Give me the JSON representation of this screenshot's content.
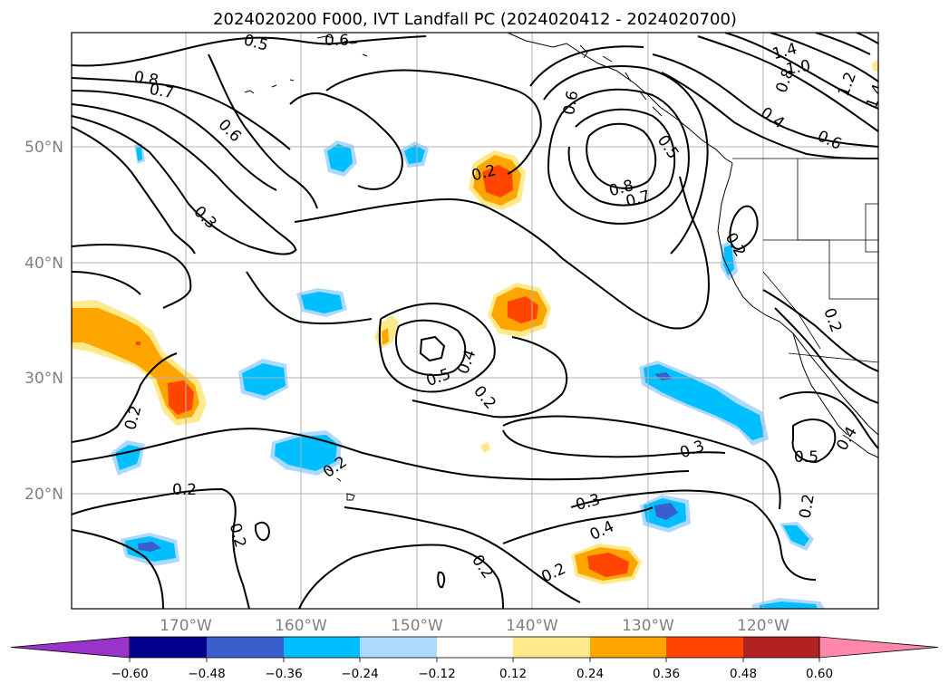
{
  "title": "2024020200 F000, IVT Landfall PC (2024020412 - 2024020700)",
  "lat_labels": [
    "50°N",
    "40°N",
    "30°N",
    "20°N"
  ],
  "lon_labels": [
    "170°W",
    "160°W",
    "150°W",
    "140°W",
    "130°W",
    "120°W"
  ],
  "colorbar": {
    "tick_labels": [
      "−0.60",
      "−0.48",
      "−0.36",
      "−0.24",
      "−0.12",
      "0.12",
      "0.24",
      "0.36",
      "0.48",
      "0.60"
    ],
    "colors": [
      "#9933cc",
      "#00008b",
      "#3a5fcd",
      "#00bfff",
      "#add8ff",
      "#ffffff",
      "#ffe98a",
      "#ffa500",
      "#ff4500",
      "#b22222",
      "#ff88aa"
    ]
  },
  "contour_labels": [
    {
      "text": "0.5",
      "name": "contour-label-0.5-a"
    },
    {
      "text": "0.6",
      "name": "contour-label-0.6-a"
    },
    {
      "text": "0.8",
      "name": "contour-label-0.8-a"
    },
    {
      "text": "0.7",
      "name": "contour-label-0.7-a"
    },
    {
      "text": "0.6",
      "name": "contour-label-0.6-b"
    },
    {
      "text": "0.3",
      "name": "contour-label-0.3-a"
    },
    {
      "text": "0.2",
      "name": "contour-label-0.2-a"
    },
    {
      "text": "0.6",
      "name": "contour-label-0.6-c"
    },
    {
      "text": "0.5",
      "name": "contour-label-0.5-b"
    },
    {
      "text": "0.8",
      "name": "contour-label-0.8-b"
    },
    {
      "text": "0.7",
      "name": "contour-label-0.7-b"
    },
    {
      "text": "1.4",
      "name": "contour-label-1.4-a"
    },
    {
      "text": "1.0",
      "name": "contour-label-1.0"
    },
    {
      "text": "0.8",
      "name": "contour-label-0.8-c"
    },
    {
      "text": "1.2",
      "name": "contour-label-1.2"
    },
    {
      "text": "1.4",
      "name": "contour-label-1.4-b"
    },
    {
      "text": "0.4",
      "name": "contour-label-0.4-a"
    },
    {
      "text": "0.6",
      "name": "contour-label-0.6-d"
    },
    {
      "text": "0.2",
      "name": "contour-label-0.2-b"
    },
    {
      "text": "0.5",
      "name": "contour-label-0.5-c"
    },
    {
      "text": "0.4",
      "name": "contour-label-0.4-b"
    },
    {
      "text": "0.2",
      "name": "contour-label-0.2-c"
    },
    {
      "text": "0.2",
      "name": "contour-label-0.2-d"
    },
    {
      "text": "0.2",
      "name": "contour-label-0.2-e"
    },
    {
      "text": "0.2",
      "name": "contour-label-0.2-f"
    },
    {
      "text": "0.2",
      "name": "contour-label-0.2-g"
    },
    {
      "text": "0.3",
      "name": "contour-label-0.3-b"
    },
    {
      "text": "0.3",
      "name": "contour-label-0.3-c"
    },
    {
      "text": "0.4",
      "name": "contour-label-0.4-c"
    },
    {
      "text": "0.2",
      "name": "contour-label-0.2-h"
    },
    {
      "text": "0.2",
      "name": "contour-label-0.2-i"
    },
    {
      "text": "0.5",
      "name": "contour-label-0.5-d"
    },
    {
      "text": "0.4",
      "name": "contour-label-0.4-d"
    },
    {
      "text": "0.2",
      "name": "contour-label-0.2-j"
    },
    {
      "text": "0.2",
      "name": "contour-label-0.2-k"
    }
  ]
}
